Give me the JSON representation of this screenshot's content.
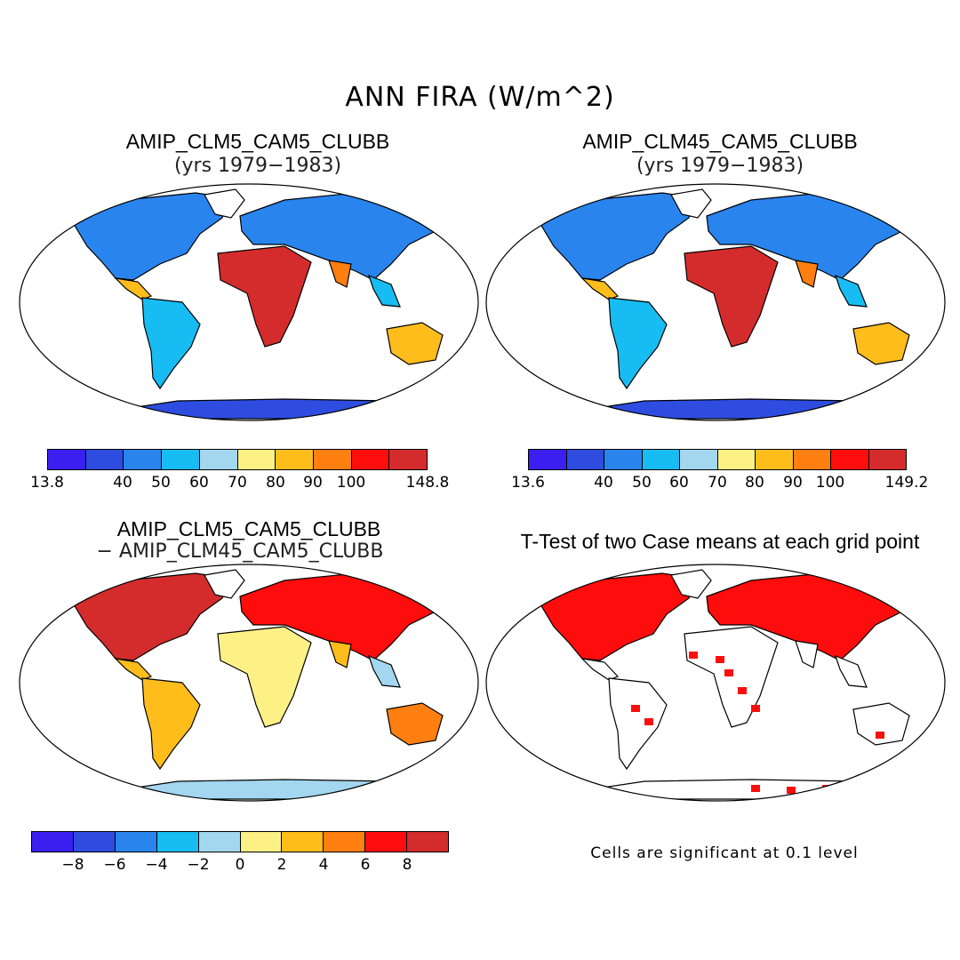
{
  "main_title": "ANN FIRA (W/m^2)",
  "panels": [
    {
      "id": "top-left",
      "title": "AMIP_CLM5_CAM5_CLUBB",
      "subtitle": "(yrs 1979−1983)",
      "colorbar": {
        "min_label": "13.8",
        "max_label": "148.8",
        "ticks": [
          "40",
          "50",
          "60",
          "70",
          "80",
          "90",
          "100"
        ]
      }
    },
    {
      "id": "top-right",
      "title": "AMIP_CLM45_CAM5_CLUBB",
      "subtitle": "(yrs 1979−1983)",
      "colorbar": {
        "min_label": "13.6",
        "max_label": "149.2",
        "ticks": [
          "40",
          "50",
          "60",
          "70",
          "80",
          "90",
          "100"
        ]
      }
    },
    {
      "id": "bottom-left",
      "title": "AMIP_CLM5_CAM5_CLUBB",
      "subtitle": "− AMIP_CLM45_CAM5_CLUBB",
      "colorbar": {
        "ticks": [
          "−8",
          "−6",
          "−4",
          "−2",
          "0",
          "2",
          "4",
          "6",
          "8"
        ]
      }
    },
    {
      "id": "bottom-right",
      "title": "T-Test of two Case means at each grid point",
      "note": "Cells are significant at 0.1 level"
    }
  ],
  "palette": [
    "#3a1ff0",
    "#2e4de0",
    "#2a84ee",
    "#17bdf2",
    "#a3d6ef",
    "#fdf186",
    "#ffbd1c",
    "#ff7f10",
    "#ff0d0d",
    "#d42c2c"
  ],
  "land_color": "#000000",
  "sig_color": "#ff0d0d"
}
